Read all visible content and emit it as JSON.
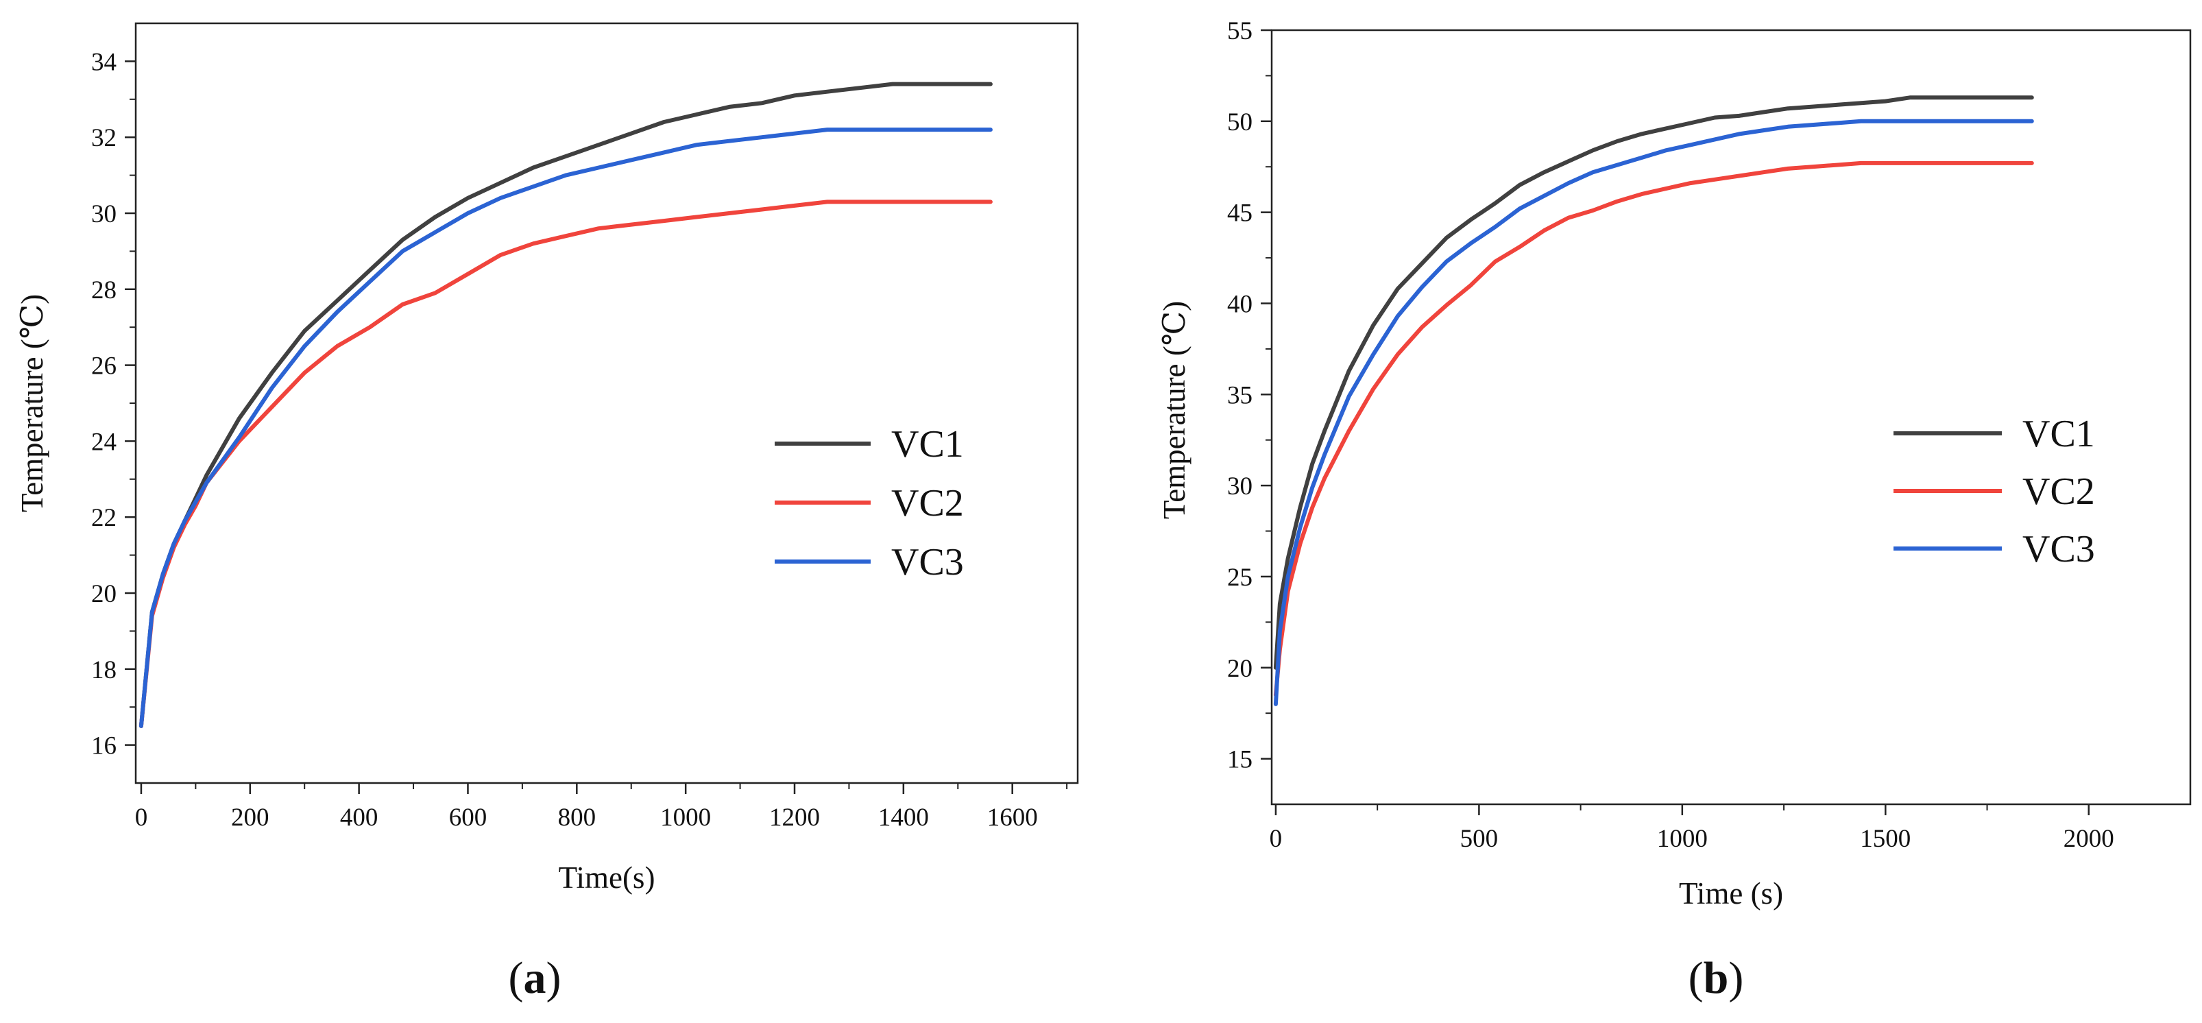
{
  "chart_data": [
    {
      "type": "line",
      "panel_label_prefix": "(",
      "panel_label": "a",
      "panel_label_suffix": ")",
      "xlabel": "Time(s)",
      "ylabel": "Temperature (℃)",
      "xlim": [
        -10,
        1720
      ],
      "ylim": [
        15,
        35
      ],
      "xticks": [
        0,
        200,
        400,
        600,
        800,
        1000,
        1200,
        1400,
        1600
      ],
      "yticks": [
        16,
        18,
        20,
        22,
        24,
        26,
        28,
        30,
        32,
        34
      ],
      "legend": [
        "VC1",
        "VC2",
        "VC3"
      ],
      "series": [
        {
          "name": "VC1",
          "color": "#404040",
          "x": [
            0,
            20,
            40,
            60,
            80,
            100,
            120,
            180,
            240,
            300,
            360,
            420,
            480,
            540,
            600,
            660,
            720,
            780,
            840,
            900,
            960,
            1020,
            1080,
            1140,
            1200,
            1260,
            1320,
            1380,
            1440,
            1500,
            1560
          ],
          "y": [
            16.5,
            19.5,
            20.5,
            21.3,
            21.9,
            22.5,
            23.1,
            24.6,
            25.8,
            26.9,
            27.7,
            28.5,
            29.3,
            29.9,
            30.4,
            30.8,
            31.2,
            31.5,
            31.8,
            32.1,
            32.4,
            32.6,
            32.8,
            32.9,
            33.1,
            33.2,
            33.3,
            33.4,
            33.4,
            33.4,
            33.4
          ]
        },
        {
          "name": "VC2",
          "color": "#f0443c",
          "x": [
            0,
            20,
            40,
            60,
            80,
            100,
            120,
            180,
            240,
            300,
            360,
            420,
            480,
            540,
            600,
            660,
            720,
            780,
            840,
            900,
            960,
            1020,
            1080,
            1140,
            1200,
            1260,
            1320,
            1380,
            1440,
            1500,
            1560
          ],
          "y": [
            16.5,
            19.4,
            20.4,
            21.2,
            21.8,
            22.3,
            22.9,
            24.0,
            24.9,
            25.8,
            26.5,
            27.0,
            27.6,
            27.9,
            28.4,
            28.9,
            29.2,
            29.4,
            29.6,
            29.7,
            29.8,
            29.9,
            30.0,
            30.1,
            30.2,
            30.3,
            30.3,
            30.3,
            30.3,
            30.3,
            30.3
          ]
        },
        {
          "name": "VC3",
          "color": "#2b63d3",
          "x": [
            0,
            20,
            40,
            60,
            80,
            100,
            120,
            180,
            240,
            300,
            360,
            420,
            480,
            540,
            600,
            660,
            720,
            780,
            840,
            900,
            960,
            1020,
            1080,
            1140,
            1200,
            1260,
            1320,
            1380,
            1440,
            1500,
            1560
          ],
          "y": [
            16.5,
            19.5,
            20.5,
            21.3,
            21.9,
            22.4,
            22.9,
            24.1,
            25.4,
            26.5,
            27.4,
            28.2,
            29.0,
            29.5,
            30.0,
            30.4,
            30.7,
            31.0,
            31.2,
            31.4,
            31.6,
            31.8,
            31.9,
            32.0,
            32.1,
            32.2,
            32.2,
            32.2,
            32.2,
            32.2,
            32.2
          ]
        }
      ]
    },
    {
      "type": "line",
      "panel_label_prefix": "(",
      "panel_label": "b",
      "panel_label_suffix": ")",
      "xlabel": "Time (s)",
      "ylabel": "Temperature (℃)",
      "xlim": [
        -10,
        2250
      ],
      "ylim": [
        12.5,
        55
      ],
      "xticks": [
        0,
        500,
        1000,
        1500,
        2000
      ],
      "yticks": [
        15,
        20,
        25,
        30,
        35,
        40,
        45,
        50,
        55
      ],
      "legend": [
        "VC1",
        "VC2",
        "VC3"
      ],
      "series": [
        {
          "name": "VC1",
          "color": "#404040",
          "x": [
            0,
            10,
            30,
            60,
            90,
            120,
            180,
            240,
            300,
            360,
            420,
            480,
            540,
            600,
            660,
            720,
            780,
            840,
            900,
            960,
            1020,
            1080,
            1140,
            1200,
            1260,
            1320,
            1380,
            1440,
            1500,
            1560,
            1620,
            1680,
            1740,
            1800,
            1860
          ],
          "y": [
            20.0,
            23.5,
            26.0,
            28.8,
            31.2,
            33.0,
            36.3,
            38.8,
            40.8,
            42.2,
            43.6,
            44.6,
            45.5,
            46.5,
            47.2,
            47.8,
            48.4,
            48.9,
            49.3,
            49.6,
            49.9,
            50.2,
            50.3,
            50.5,
            50.7,
            50.8,
            50.9,
            51.0,
            51.1,
            51.3,
            51.3,
            51.3,
            51.3,
            51.3,
            51.3
          ]
        },
        {
          "name": "VC2",
          "color": "#f0443c",
          "x": [
            0,
            10,
            30,
            60,
            90,
            120,
            180,
            240,
            300,
            360,
            420,
            480,
            540,
            600,
            660,
            720,
            780,
            840,
            900,
            960,
            1020,
            1080,
            1140,
            1200,
            1260,
            1320,
            1380,
            1440,
            1500,
            1560,
            1620,
            1680,
            1740,
            1800,
            1860
          ],
          "y": [
            18.5,
            21.0,
            24.2,
            26.8,
            28.8,
            30.4,
            33.0,
            35.3,
            37.2,
            38.7,
            39.9,
            41.0,
            42.3,
            43.1,
            44.0,
            44.7,
            45.1,
            45.6,
            46.0,
            46.3,
            46.6,
            46.8,
            47.0,
            47.2,
            47.4,
            47.5,
            47.6,
            47.7,
            47.7,
            47.7,
            47.7,
            47.7,
            47.7,
            47.7,
            47.7
          ]
        },
        {
          "name": "VC3",
          "color": "#2b63d3",
          "x": [
            0,
            10,
            30,
            60,
            90,
            120,
            180,
            240,
            300,
            360,
            420,
            480,
            540,
            600,
            660,
            720,
            780,
            840,
            900,
            960,
            1020,
            1080,
            1140,
            1200,
            1260,
            1320,
            1380,
            1440,
            1500,
            1560,
            1620,
            1680,
            1740,
            1800,
            1860
          ],
          "y": [
            18.0,
            22.0,
            25.0,
            27.7,
            29.9,
            31.7,
            34.9,
            37.2,
            39.3,
            40.9,
            42.3,
            43.3,
            44.2,
            45.2,
            45.9,
            46.6,
            47.2,
            47.6,
            48.0,
            48.4,
            48.7,
            49.0,
            49.3,
            49.5,
            49.7,
            49.8,
            49.9,
            50.0,
            50.0,
            50.0,
            50.0,
            50.0,
            50.0,
            50.0,
            50.0
          ]
        }
      ]
    }
  ]
}
